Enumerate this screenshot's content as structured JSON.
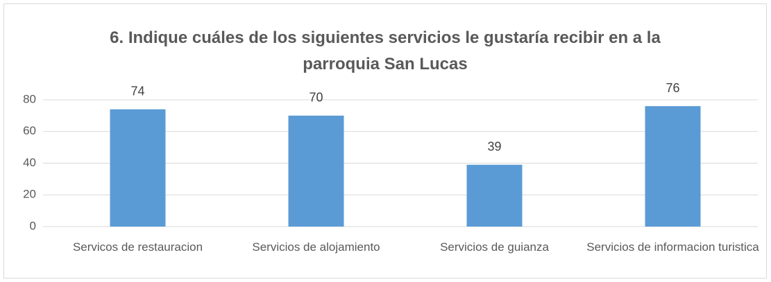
{
  "chart_data": {
    "type": "bar",
    "title": "6. Indique cuáles de los siguientes servicios le gustaría recibir en a la parroquia San Lucas",
    "categories": [
      "Servicos de restauracion",
      "Servicios de alojamiento",
      "Servicios de guianza",
      "Servicios de informacion turistica"
    ],
    "values": [
      74,
      70,
      39,
      76
    ],
    "color": "#5b9bd5",
    "ylim": [
      0,
      80
    ],
    "yticks": [
      0,
      20,
      40,
      60,
      80
    ],
    "grid": true
  }
}
